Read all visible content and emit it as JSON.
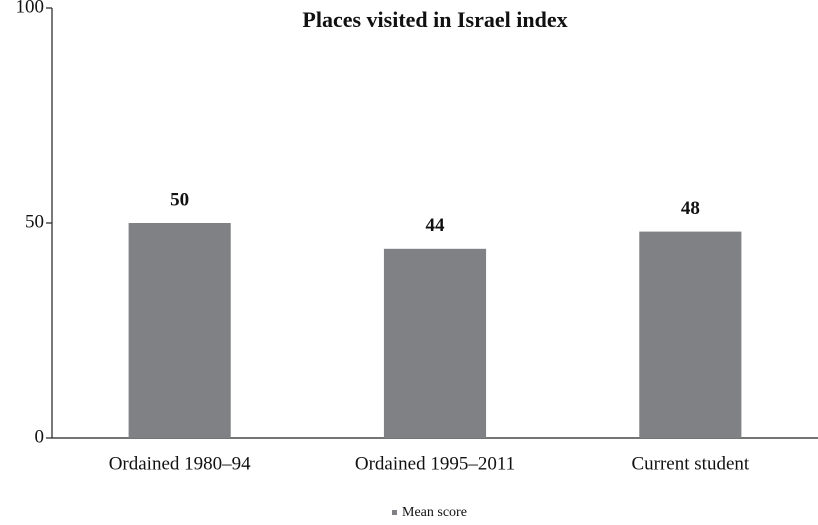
{
  "chart_data": {
    "type": "bar",
    "title": "Places visited in Israel index",
    "categories": [
      "Ordained 1980–94",
      "Ordained 1995–2011",
      "Current student"
    ],
    "series": [
      {
        "name": "Mean score",
        "color": "#808184",
        "values": [
          50,
          44,
          48
        ]
      }
    ],
    "ylim": [
      0,
      100
    ],
    "yticks": [
      0,
      50,
      100
    ],
    "grid": false,
    "legend": "bottom"
  }
}
